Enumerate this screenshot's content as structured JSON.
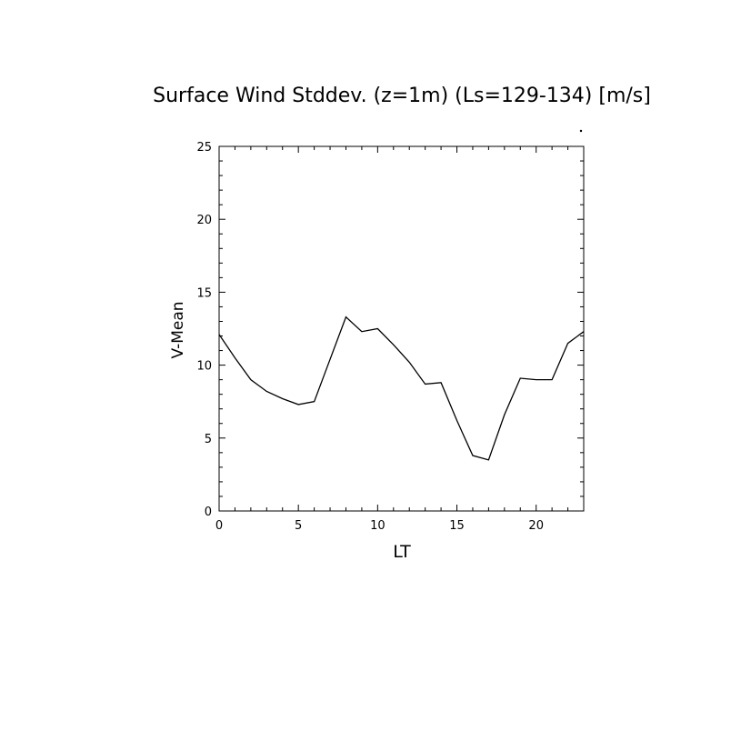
{
  "chart_data": {
    "type": "line",
    "title": "Surface Wind Stddev. (z=1m) (Ls=129-134) [m/s]",
    "xlabel": "LT",
    "ylabel": "V-Mean",
    "xlim": [
      0,
      23
    ],
    "ylim": [
      0,
      25
    ],
    "x_ticks": [
      0,
      5,
      10,
      15,
      20
    ],
    "y_ticks": [
      0,
      5,
      10,
      15,
      20,
      25
    ],
    "x_tick_labels": [
      "0",
      "5",
      "10",
      "15",
      "20"
    ],
    "y_tick_labels": [
      "0",
      "5",
      "10",
      "15",
      "20",
      "25"
    ],
    "grid": false,
    "series": [
      {
        "x": [
          0,
          1,
          2,
          3,
          4,
          5,
          6,
          7,
          8,
          9,
          10,
          11,
          12,
          13,
          14,
          15,
          16,
          17,
          18,
          19,
          20,
          21,
          22,
          23
        ],
        "values": [
          12.1,
          10.5,
          9.0,
          8.2,
          7.7,
          7.3,
          7.5,
          10.4,
          13.3,
          12.3,
          12.5,
          11.4,
          10.2,
          8.7,
          8.8,
          6.2,
          3.8,
          3.5,
          6.6,
          9.1,
          9.0,
          9.0,
          11.5,
          12.3
        ],
        "color": "#000000"
      }
    ]
  }
}
